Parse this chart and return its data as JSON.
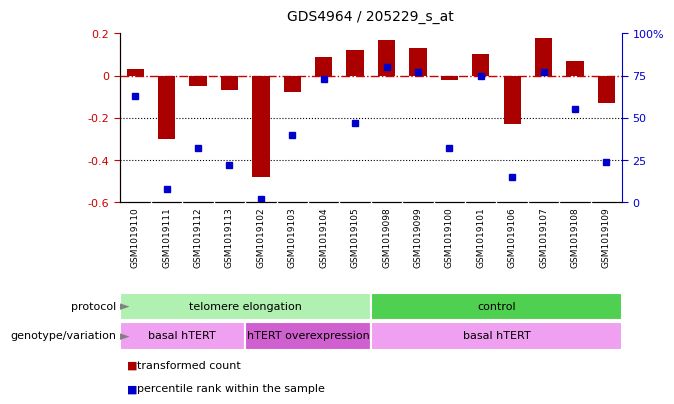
{
  "title": "GDS4964 / 205229_s_at",
  "samples": [
    "GSM1019110",
    "GSM1019111",
    "GSM1019112",
    "GSM1019113",
    "GSM1019102",
    "GSM1019103",
    "GSM1019104",
    "GSM1019105",
    "GSM1019098",
    "GSM1019099",
    "GSM1019100",
    "GSM1019101",
    "GSM1019106",
    "GSM1019107",
    "GSM1019108",
    "GSM1019109"
  ],
  "bar_values": [
    0.03,
    -0.3,
    -0.05,
    -0.07,
    -0.48,
    -0.08,
    0.09,
    0.12,
    0.17,
    0.13,
    -0.02,
    0.1,
    -0.23,
    0.18,
    0.07,
    -0.13
  ],
  "percentile_ranks": [
    63,
    8,
    32,
    22,
    2,
    40,
    73,
    47,
    80,
    77,
    32,
    75,
    15,
    77,
    55,
    24
  ],
  "bar_color": "#aa0000",
  "dot_color": "#0000cc",
  "ylim_left": [
    -0.6,
    0.2
  ],
  "ylim_right": [
    0,
    100
  ],
  "hline_y": 0.0,
  "dotted_lines": [
    -0.2,
    -0.4
  ],
  "protocol_groups": [
    {
      "label": "telomere elongation",
      "start": 0,
      "end": 8,
      "color": "#b0f0b0"
    },
    {
      "label": "control",
      "start": 8,
      "end": 16,
      "color": "#50d050"
    }
  ],
  "genotype_groups": [
    {
      "label": "basal hTERT",
      "start": 0,
      "end": 4,
      "color": "#f0a0f0"
    },
    {
      "label": "hTERT overexpression",
      "start": 4,
      "end": 8,
      "color": "#d060d0"
    },
    {
      "label": "basal hTERT",
      "start": 8,
      "end": 16,
      "color": "#f0a0f0"
    }
  ],
  "legend_items": [
    {
      "label": "transformed count",
      "color": "#aa0000"
    },
    {
      "label": "percentile rank within the sample",
      "color": "#0000cc"
    }
  ],
  "sample_bg": "#c8c8c8",
  "left_yticks": [
    0.2,
    0.0,
    -0.2,
    -0.4,
    -0.6
  ],
  "left_yticklabels": [
    "0.2",
    "0",
    "-0.2",
    "-0.4",
    "-0.6"
  ],
  "right_yticks": [
    100,
    75,
    50,
    25,
    0
  ],
  "right_yticklabels": [
    "100%",
    "75",
    "50",
    "25",
    "0"
  ]
}
